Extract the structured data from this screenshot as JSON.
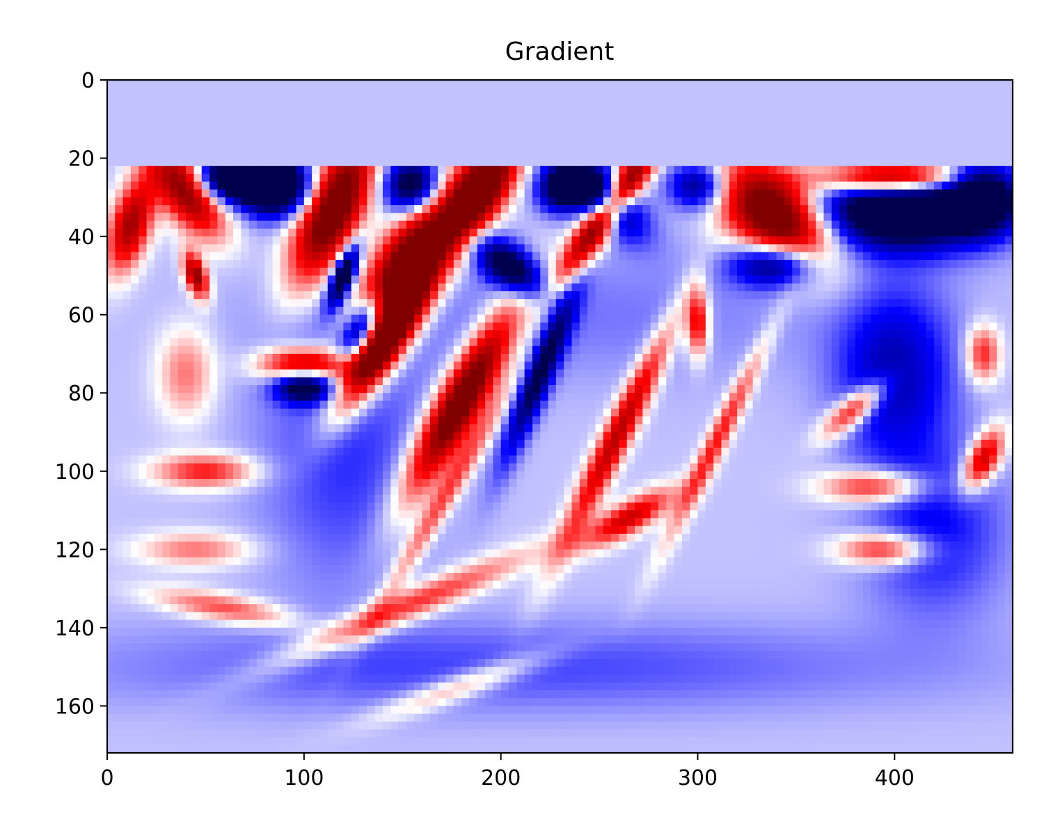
{
  "chart_data": {
    "type": "heatmap",
    "title": "Gradient",
    "xlabel": "",
    "ylabel": "",
    "xlim": [
      0,
      460
    ],
    "ylim": [
      172,
      0
    ],
    "x_ticks": [
      0,
      100,
      200,
      300,
      400
    ],
    "y_ticks": [
      0,
      20,
      40,
      60,
      80,
      100,
      120,
      140,
      160
    ],
    "colormap": "seismic",
    "value_range": [
      -1,
      1
    ],
    "grid": false,
    "legend": "none",
    "masked_rows_until": 23,
    "masked_value": -0.12,
    "background_value": -0.12,
    "features": [
      {
        "x": 85,
        "y": 27,
        "sx": 12,
        "sy": 5,
        "angle": 0,
        "value": -1.6
      },
      {
        "x": 62,
        "y": 25,
        "sx": 12,
        "sy": 4,
        "angle": 0,
        "value": -1.3
      },
      {
        "x": 40,
        "y": 28,
        "sx": 14,
        "sy": 6,
        "angle": 25,
        "value": 1.2
      },
      {
        "x": 12,
        "y": 37,
        "sx": 10,
        "sy": 6,
        "angle": -45,
        "value": 1.0
      },
      {
        "x": 45,
        "y": 50,
        "sx": 5,
        "sy": 3,
        "angle": 40,
        "value": 1.1
      },
      {
        "x": 115,
        "y": 33,
        "sx": 18,
        "sy": 8,
        "angle": -40,
        "value": 1.4
      },
      {
        "x": 150,
        "y": 50,
        "sx": 22,
        "sy": 8,
        "angle": -35,
        "value": 1.6
      },
      {
        "x": 140,
        "y": 68,
        "sx": 20,
        "sy": 5,
        "angle": -35,
        "value": 1.2
      },
      {
        "x": 180,
        "y": 82,
        "sx": 25,
        "sy": 6,
        "angle": -40,
        "value": 1.4
      },
      {
        "x": 100,
        "y": 73,
        "sx": 15,
        "sy": 3,
        "angle": 0,
        "value": 1.1
      },
      {
        "x": 190,
        "y": 28,
        "sx": 15,
        "sy": 6,
        "angle": -30,
        "value": 1.5
      },
      {
        "x": 255,
        "y": 33,
        "sx": 22,
        "sy": 4,
        "angle": -35,
        "value": 1.4
      },
      {
        "x": 230,
        "y": 28,
        "sx": 8,
        "sy": 4,
        "angle": 0,
        "value": -1.0
      },
      {
        "x": 155,
        "y": 27,
        "sx": 10,
        "sy": 5,
        "angle": 0,
        "value": -1.1
      },
      {
        "x": 120,
        "y": 50,
        "sx": 3,
        "sy": 7,
        "angle": 45,
        "value": -1.3
      },
      {
        "x": 130,
        "y": 63,
        "sx": 9,
        "sy": 4,
        "angle": -30,
        "value": -1.2
      },
      {
        "x": 100,
        "y": 78,
        "sx": 10,
        "sy": 3,
        "angle": 0,
        "value": -1.1
      },
      {
        "x": 250,
        "y": 29,
        "sx": 15,
        "sy": 5,
        "angle": 20,
        "value": -1.2
      },
      {
        "x": 205,
        "y": 48,
        "sx": 12,
        "sy": 4,
        "angle": 15,
        "value": -1.1
      },
      {
        "x": 300,
        "y": 27,
        "sx": 10,
        "sy": 4,
        "angle": 0,
        "value": -0.8
      },
      {
        "x": 340,
        "y": 35,
        "sx": 20,
        "sy": 8,
        "angle": 15,
        "value": 1.5
      },
      {
        "x": 400,
        "y": 25,
        "sx": 25,
        "sy": 3,
        "angle": 0,
        "value": 1.5
      },
      {
        "x": 405,
        "y": 33,
        "sx": 30,
        "sy": 7,
        "angle": 0,
        "value": -1.5
      },
      {
        "x": 445,
        "y": 30,
        "sx": 12,
        "sy": 6,
        "angle": 0,
        "value": -1.1
      },
      {
        "x": 340,
        "y": 47,
        "sx": 15,
        "sy": 4,
        "angle": 0,
        "value": -1.0
      },
      {
        "x": 400,
        "y": 75,
        "sx": 20,
        "sy": 15,
        "angle": 0,
        "value": -0.6
      },
      {
        "x": 300,
        "y": 62,
        "sx": 4,
        "sy": 6,
        "angle": 0,
        "value": 0.8
      },
      {
        "x": 260,
        "y": 90,
        "sx": 28,
        "sy": 4,
        "angle": -45,
        "value": 0.9
      },
      {
        "x": 220,
        "y": 75,
        "sx": 20,
        "sy": 4,
        "angle": -50,
        "value": -0.9
      },
      {
        "x": 310,
        "y": 92,
        "sx": 25,
        "sy": 3,
        "angle": -45,
        "value": 0.6
      },
      {
        "x": 265,
        "y": 112,
        "sx": 16,
        "sy": 3,
        "angle": -15,
        "value": 0.8
      },
      {
        "x": 380,
        "y": 84,
        "sx": 12,
        "sy": 3,
        "angle": -20,
        "value": 0.8
      },
      {
        "x": 395,
        "y": 120,
        "sx": 16,
        "sy": 3,
        "angle": 0,
        "value": 0.7
      },
      {
        "x": 390,
        "y": 104,
        "sx": 18,
        "sy": 3,
        "angle": 0,
        "value": 0.7
      },
      {
        "x": 445,
        "y": 97,
        "sx": 8,
        "sy": 4,
        "angle": -30,
        "value": 0.9
      },
      {
        "x": 445,
        "y": 70,
        "sx": 6,
        "sy": 5,
        "angle": 0,
        "value": 0.6
      },
      {
        "x": 50,
        "y": 100,
        "sx": 18,
        "sy": 3,
        "angle": 0,
        "value": 0.6
      },
      {
        "x": 45,
        "y": 120,
        "sx": 20,
        "sy": 3,
        "angle": 0,
        "value": 0.4
      },
      {
        "x": 60,
        "y": 135,
        "sx": 25,
        "sy": 2.5,
        "angle": 5,
        "value": 0.5
      },
      {
        "x": 150,
        "y": 135,
        "sx": 45,
        "sy": 3,
        "angle": -12,
        "value": 0.6
      },
      {
        "x": 180,
        "y": 155,
        "sx": 30,
        "sy": 2.5,
        "angle": -10,
        "value": 0.4
      },
      {
        "x": 40,
        "y": 75,
        "sx": 10,
        "sy": 8,
        "angle": 0,
        "value": 0.4
      },
      {
        "x": 170,
        "y": 108,
        "sx": 30,
        "sy": 3,
        "angle": -40,
        "value": 0.5
      },
      {
        "x": 120,
        "y": 95,
        "sx": 30,
        "sy": 25,
        "angle": 0,
        "value": -0.3
      },
      {
        "x": 420,
        "y": 115,
        "sx": 25,
        "sy": 15,
        "angle": 0,
        "value": -0.4
      },
      {
        "x": 200,
        "y": 150,
        "sx": 150,
        "sy": 8,
        "angle": 0,
        "value": -0.25
      },
      {
        "x": 240,
        "y": 60,
        "sx": 100,
        "sy": 12,
        "angle": 0,
        "value": -0.15
      }
    ]
  }
}
